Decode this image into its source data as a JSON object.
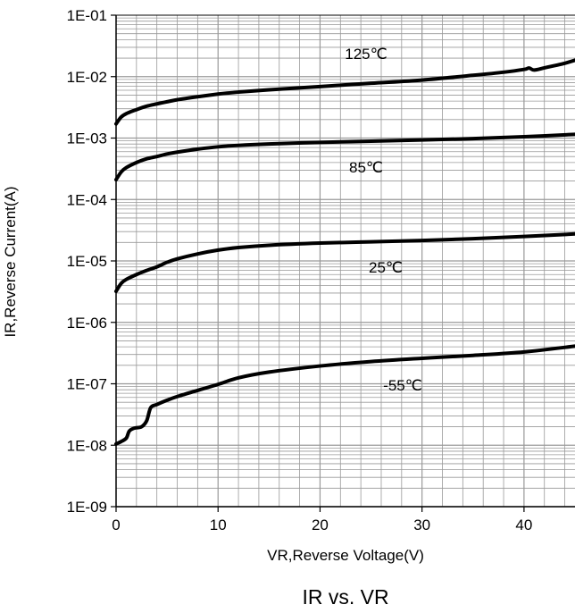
{
  "chart_data": {
    "type": "line",
    "title": "IR vs. VR",
    "xlabel": "VR,Reverse Voltage(V)",
    "ylabel": "IR,Reverse Current(A)",
    "xlim": [
      0,
      45
    ],
    "ylim": [
      1e-09,
      0.1
    ],
    "yscale": "log",
    "grid": true,
    "x_ticks": [
      0,
      10,
      20,
      30,
      40
    ],
    "x_tick_labels": [
      "0",
      "10",
      "20",
      "30",
      "40"
    ],
    "y_ticks": [
      1e-09,
      1e-08,
      1e-07,
      1e-06,
      1e-05,
      0.0001,
      0.001,
      0.01,
      0.1
    ],
    "y_tick_labels": [
      "1E-09",
      "1E-08",
      "1E-07",
      "1E-06",
      "1E-05",
      "1E-04",
      "1E-03",
      "1E-02",
      "1E-01"
    ],
    "series": [
      {
        "name": "125℃",
        "x": [
          0,
          0.5,
          1,
          2,
          3,
          4,
          5,
          6,
          8,
          10,
          12,
          15,
          20,
          25,
          30,
          35,
          38,
          40,
          40.5,
          41,
          42,
          43,
          44,
          45
        ],
        "y": [
          0.0017,
          0.0022,
          0.0025,
          0.0029,
          0.0033,
          0.0036,
          0.0039,
          0.0042,
          0.0047,
          0.0052,
          0.0056,
          0.0061,
          0.0069,
          0.0078,
          0.0088,
          0.0105,
          0.0118,
          0.0131,
          0.0138,
          0.0128,
          0.0139,
          0.0151,
          0.0165,
          0.0185
        ]
      },
      {
        "name": "85℃",
        "x": [
          0,
          0.5,
          1,
          2,
          3,
          4,
          5,
          6,
          8,
          10,
          12,
          15,
          20,
          25,
          30,
          35,
          40,
          45
        ],
        "y": [
          0.00021,
          0.00028,
          0.00033,
          0.0004,
          0.00046,
          0.0005,
          0.00055,
          0.00059,
          0.00066,
          0.00072,
          0.00076,
          0.0008,
          0.00085,
          0.00089,
          0.00093,
          0.00098,
          0.00105,
          0.00115
        ]
      },
      {
        "name": "25℃",
        "x": [
          0,
          0.5,
          1,
          2,
          3,
          4,
          5,
          6,
          8,
          10,
          12,
          15,
          20,
          25,
          30,
          35,
          40,
          45
        ],
        "y": [
          3.2e-06,
          4.3e-06,
          5e-06,
          6e-06,
          7e-06,
          8e-06,
          9.5e-06,
          1.08e-05,
          1.3e-05,
          1.5e-05,
          1.65e-05,
          1.8e-05,
          1.95e-05,
          2.05e-05,
          2.15e-05,
          2.3e-05,
          2.5e-05,
          2.75e-05
        ]
      },
      {
        "name": "-55℃",
        "x": [
          0,
          0.5,
          1,
          1.3,
          1.8,
          2.5,
          3,
          3.4,
          4,
          5,
          6,
          8,
          10,
          12,
          15,
          20,
          25,
          30,
          35,
          40,
          45
        ],
        "y": [
          1.05e-08,
          1.15e-08,
          1.3e-08,
          1.7e-08,
          1.9e-08,
          2e-08,
          2.5e-08,
          4.1e-08,
          4.6e-08,
          5.4e-08,
          6.2e-08,
          7.8e-08,
          9.8e-08,
          1.25e-07,
          1.55e-07,
          1.95e-07,
          2.3e-07,
          2.6e-07,
          2.9e-07,
          3.3e-07,
          4.1e-07
        ]
      }
    ],
    "annotations": [
      "125℃",
      "85℃",
      "25℃",
      "-55℃"
    ],
    "colors": {
      "line": "#000000",
      "grid": "#999999",
      "background": "#ffffff"
    }
  }
}
